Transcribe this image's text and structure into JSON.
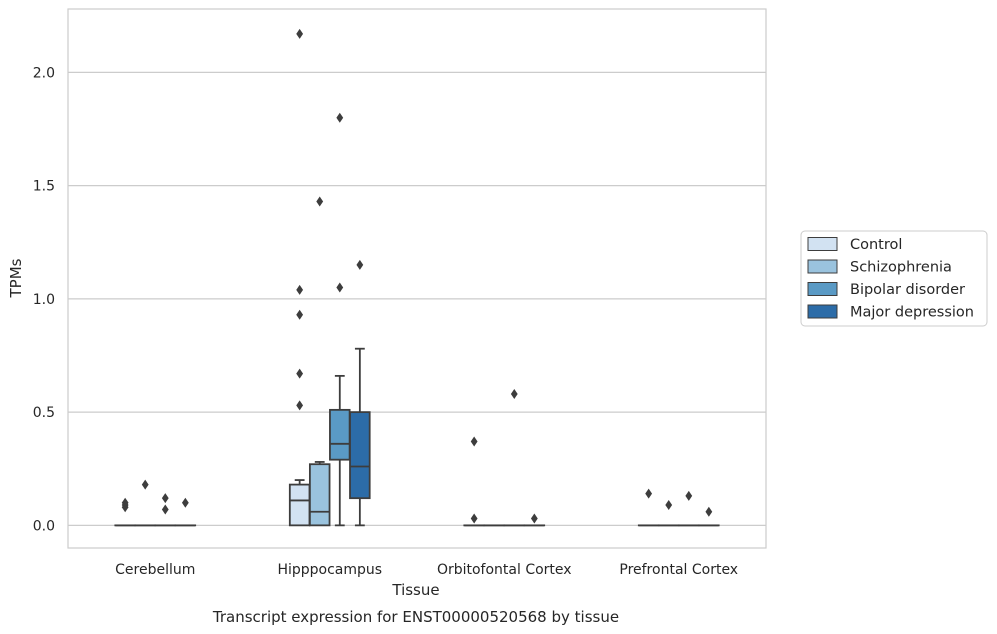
{
  "caption": "Transcript expression for ENST00000520568 by tissue",
  "chart_data": {
    "type": "box",
    "xlabel": "Tissue",
    "ylabel": "TPMs",
    "ylim": [
      -0.1,
      2.28
    ],
    "yticks": [
      0.0,
      0.5,
      1.0,
      1.5,
      2.0
    ],
    "ytick_labels": [
      "0.0",
      "0.5",
      "1.0",
      "1.5",
      "2.0"
    ],
    "grid": "horizontal",
    "legend_position": "right",
    "categories": [
      "Cerebellum",
      "Hipppocampus",
      "Orbitofontal Cortex",
      "Prefrontal Cortex"
    ],
    "series": [
      {
        "name": "Control",
        "color": "#d2e2f2",
        "boxes": [
          {
            "q1": 0,
            "median": 0,
            "q3": 0,
            "whislo": 0,
            "whishi": 0,
            "fliers": [
              0.08,
              0.09,
              0.1
            ]
          },
          {
            "q1": 0,
            "median": 0.11,
            "q3": 0.18,
            "whislo": 0,
            "whishi": 0.2,
            "fliers": [
              0.53,
              0.67,
              0.93,
              1.04,
              2.17
            ]
          },
          {
            "q1": 0,
            "median": 0,
            "q3": 0,
            "whislo": 0,
            "whishi": 0,
            "fliers": [
              0.37,
              0.03
            ]
          },
          {
            "q1": 0,
            "median": 0,
            "q3": 0,
            "whislo": 0,
            "whishi": 0,
            "fliers": [
              0.14
            ]
          }
        ]
      },
      {
        "name": "Schizophrenia",
        "color": "#9ac3de",
        "boxes": [
          {
            "q1": 0,
            "median": 0,
            "q3": 0,
            "whislo": 0,
            "whishi": 0,
            "fliers": [
              0.18
            ]
          },
          {
            "q1": 0,
            "median": 0.06,
            "q3": 0.27,
            "whislo": 0,
            "whishi": 0.28,
            "fliers": [
              1.43
            ]
          },
          {
            "q1": 0,
            "median": 0,
            "q3": 0,
            "whislo": 0,
            "whishi": 0,
            "fliers": []
          },
          {
            "q1": 0,
            "median": 0,
            "q3": 0,
            "whislo": 0,
            "whishi": 0,
            "fliers": [
              0.09
            ]
          }
        ]
      },
      {
        "name": "Bipolar disorder",
        "color": "#5a9ac5",
        "boxes": [
          {
            "q1": 0,
            "median": 0,
            "q3": 0,
            "whislo": 0,
            "whishi": 0,
            "fliers": [
              0.07,
              0.12
            ]
          },
          {
            "q1": 0.29,
            "median": 0.36,
            "q3": 0.51,
            "whislo": 0,
            "whishi": 0.66,
            "fliers": [
              1.05,
              1.8
            ]
          },
          {
            "q1": 0,
            "median": 0,
            "q3": 0,
            "whislo": 0,
            "whishi": 0,
            "fliers": [
              0.58
            ]
          },
          {
            "q1": 0,
            "median": 0,
            "q3": 0,
            "whislo": 0,
            "whishi": 0,
            "fliers": [
              0.13
            ]
          }
        ]
      },
      {
        "name": "Major depression",
        "color": "#2c6ca8",
        "boxes": [
          {
            "q1": 0,
            "median": 0,
            "q3": 0,
            "whislo": 0,
            "whishi": 0,
            "fliers": [
              0.1
            ]
          },
          {
            "q1": 0.12,
            "median": 0.26,
            "q3": 0.5,
            "whislo": 0,
            "whishi": 0.78,
            "fliers": [
              1.15
            ]
          },
          {
            "q1": 0,
            "median": 0,
            "q3": 0,
            "whislo": 0,
            "whishi": 0,
            "fliers": [
              0.03
            ]
          },
          {
            "q1": 0,
            "median": 0,
            "q3": 0,
            "whislo": 0,
            "whishi": 0,
            "fliers": [
              0.06
            ]
          }
        ]
      }
    ]
  },
  "colors": {
    "line": "#3d3d3d",
    "grid": "#cccccc",
    "frame": "#cccccc",
    "text": "#262626"
  }
}
